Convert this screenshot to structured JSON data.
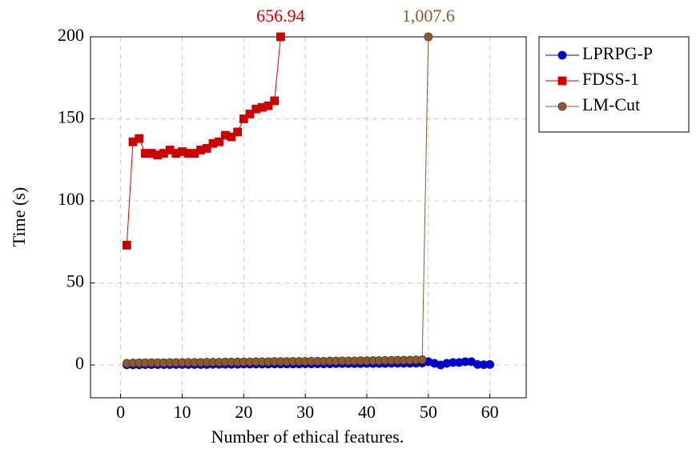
{
  "chart_data": {
    "type": "line",
    "xlabel": "Number of ethical features.",
    "ylabel": "Time (s)",
    "xlim": [
      -4.9,
      65.9
    ],
    "xticks": [
      0,
      10,
      20,
      30,
      40,
      50,
      60
    ],
    "ylim": [
      -20,
      200
    ],
    "yticks": [
      0,
      50,
      100,
      150,
      200
    ],
    "grid": true,
    "legend": "outside-right",
    "series": [
      {
        "name": "LPRPG-P",
        "color": "#0000cc",
        "marker": "circle",
        "x": [
          1,
          2,
          3,
          4,
          5,
          6,
          7,
          8,
          9,
          10,
          11,
          12,
          13,
          14,
          15,
          16,
          17,
          18,
          19,
          20,
          21,
          22,
          23,
          24,
          25,
          26,
          27,
          28,
          29,
          30,
          31,
          32,
          33,
          34,
          35,
          36,
          37,
          38,
          39,
          40,
          41,
          42,
          43,
          44,
          45,
          46,
          47,
          48,
          49,
          50,
          51,
          52,
          53,
          54,
          55,
          56,
          57,
          58,
          59,
          60
        ],
        "values": [
          0.1,
          0.1,
          0.1,
          0.2,
          0.2,
          0.2,
          0.2,
          0.2,
          0.3,
          0.3,
          0.3,
          0.3,
          0.3,
          0.3,
          0.4,
          0.4,
          0.4,
          0.4,
          0.4,
          0.5,
          0.5,
          0.5,
          0.5,
          0.5,
          0.6,
          0.6,
          0.6,
          0.6,
          0.6,
          0.7,
          0.7,
          0.7,
          0.7,
          0.7,
          0.8,
          0.8,
          0.8,
          0.8,
          0.8,
          0.9,
          0.9,
          0.9,
          0.9,
          1,
          1,
          1,
          1,
          1.1,
          1.2,
          2,
          1,
          0,
          1,
          1.5,
          1.5,
          2,
          2,
          0.3,
          0.2,
          0.3
        ]
      },
      {
        "name": "FDSS-1",
        "color": "#cc0000",
        "marker": "square",
        "x": [
          1,
          2,
          3,
          4,
          5,
          6,
          7,
          8,
          9,
          10,
          11,
          12,
          13,
          14,
          15,
          16,
          17,
          18,
          19,
          20,
          21,
          22,
          23,
          24,
          25,
          26
        ],
        "values": [
          73,
          136,
          138,
          129,
          129,
          128,
          129,
          131,
          129,
          130,
          129,
          129,
          131,
          132,
          135,
          136,
          140,
          139,
          142,
          150,
          153,
          156,
          157,
          158,
          161,
          656.94
        ],
        "value_labels": [
          null,
          null,
          null,
          null,
          null,
          null,
          null,
          null,
          null,
          null,
          null,
          null,
          null,
          null,
          null,
          null,
          null,
          null,
          null,
          null,
          null,
          null,
          null,
          null,
          null,
          "656.94"
        ]
      },
      {
        "name": "LM-Cut",
        "color": "#8c5a2e",
        "marker": "circle",
        "x": [
          1,
          2,
          3,
          4,
          5,
          6,
          7,
          8,
          9,
          10,
          11,
          12,
          13,
          14,
          15,
          16,
          17,
          18,
          19,
          20,
          21,
          22,
          23,
          24,
          25,
          26,
          27,
          28,
          29,
          30,
          31,
          32,
          33,
          34,
          35,
          36,
          37,
          38,
          39,
          40,
          41,
          42,
          43,
          44,
          45,
          46,
          47,
          48,
          49,
          50
        ],
        "values": [
          1,
          1.2,
          1.3,
          1.3,
          1.4,
          1.4,
          1.4,
          1.5,
          1.5,
          1.5,
          1.6,
          1.6,
          1.6,
          1.7,
          1.7,
          1.7,
          1.8,
          1.8,
          1.8,
          1.9,
          1.9,
          2,
          2,
          2,
          2.1,
          2.1,
          2.1,
          2.2,
          2.2,
          2.2,
          2.3,
          2.3,
          2.3,
          2.4,
          2.4,
          2.5,
          2.5,
          2.5,
          2.6,
          2.6,
          2.7,
          2.7,
          2.8,
          2.8,
          2.9,
          2.9,
          3,
          3.1,
          3.2,
          1007.6
        ],
        "value_labels": [
          null,
          null,
          null,
          null,
          null,
          null,
          null,
          null,
          null,
          null,
          null,
          null,
          null,
          null,
          null,
          null,
          null,
          null,
          null,
          null,
          null,
          null,
          null,
          null,
          null,
          null,
          null,
          null,
          null,
          null,
          null,
          null,
          null,
          null,
          null,
          null,
          null,
          null,
          null,
          null,
          null,
          null,
          null,
          null,
          null,
          null,
          null,
          null,
          null,
          "1,007.6"
        ]
      }
    ]
  }
}
